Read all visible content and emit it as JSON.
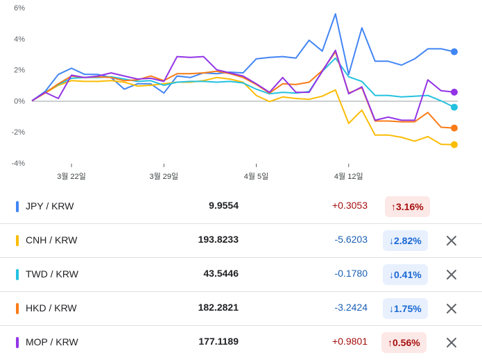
{
  "chart_data": {
    "type": "line",
    "y_ticks": [
      "6%",
      "4%",
      "2%",
      "0%",
      "-2%",
      "-4%"
    ],
    "x_tick_labels": [
      "3월 22일",
      "3월 29일",
      "4월 5일",
      "4월 12일"
    ],
    "ylim": [
      -4,
      6
    ],
    "grid": false,
    "zero_line": true,
    "series": [
      {
        "name": "JPY / KRW",
        "color": "#4285f4",
        "values": [
          0,
          0.6,
          1.7,
          2.1,
          1.7,
          1.7,
          1.5,
          0.75,
          1.1,
          1.1,
          0.5,
          1.6,
          1.5,
          1.8,
          1.75,
          1.85,
          1.8,
          2.7,
          2.8,
          2.85,
          2.75,
          3.9,
          3.2,
          5.6,
          1.7,
          4.7,
          2.55,
          2.55,
          2.3,
          2.7,
          3.35,
          3.35,
          3.16
        ]
      },
      {
        "name": "CNH / KRW",
        "color": "#fbbc04",
        "values": [
          0,
          0.5,
          1.0,
          1.3,
          1.25,
          1.25,
          1.3,
          1.2,
          0.95,
          1.0,
          1.1,
          1.2,
          1.2,
          1.3,
          1.5,
          1.4,
          1.2,
          0.35,
          -0.05,
          0.25,
          0.15,
          0.1,
          0.3,
          0.7,
          -1.45,
          -0.6,
          -2.2,
          -2.2,
          -2.35,
          -2.6,
          -2.3,
          -2.8,
          -2.82
        ]
      },
      {
        "name": "TWD / KRW",
        "color": "#24c1e0",
        "values": [
          0,
          0.55,
          1.05,
          1.45,
          1.5,
          1.5,
          1.55,
          1.4,
          1.25,
          1.3,
          1.0,
          1.2,
          1.25,
          1.25,
          1.2,
          1.25,
          1.15,
          0.75,
          0.45,
          0.55,
          0.5,
          0.6,
          1.9,
          2.75,
          1.55,
          1.25,
          0.35,
          0.35,
          0.25,
          0.3,
          0.35,
          0.0,
          -0.41
        ]
      },
      {
        "name": "HKD / KRW",
        "color": "#fa7b17",
        "values": [
          0,
          0.5,
          1.1,
          1.6,
          1.5,
          1.55,
          1.5,
          1.3,
          1.35,
          1.6,
          1.3,
          1.75,
          1.75,
          1.8,
          1.9,
          1.75,
          1.5,
          1.05,
          0.5,
          1.1,
          1.05,
          1.2,
          1.95,
          3.15,
          0.5,
          0.85,
          -1.3,
          -1.3,
          -1.35,
          -1.35,
          -0.75,
          -1.7,
          -1.75
        ]
      },
      {
        "name": "MOP / KRW",
        "color": "#9334e6",
        "values": [
          0,
          0.55,
          0.15,
          1.65,
          1.5,
          1.6,
          1.8,
          1.6,
          1.4,
          1.45,
          1.25,
          2.85,
          2.8,
          2.85,
          2.0,
          1.8,
          1.6,
          1.1,
          0.55,
          1.5,
          0.55,
          0.55,
          1.9,
          3.25,
          0.45,
          0.9,
          -1.25,
          -1.05,
          -1.25,
          -1.25,
          1.35,
          0.65,
          0.56
        ]
      }
    ]
  },
  "rows": [
    {
      "pair": "JPY / KRW",
      "price": "9.9554",
      "change": "+0.3053",
      "pct": "3.16%",
      "dir": "up",
      "arrow": "↑",
      "color": "#4285f4",
      "closable": false
    },
    {
      "pair": "CNH / KRW",
      "price": "193.8233",
      "change": "-5.6203",
      "pct": "2.82%",
      "dir": "down",
      "arrow": "↓",
      "color": "#fbbc04",
      "closable": true
    },
    {
      "pair": "TWD / KRW",
      "price": "43.5446",
      "change": "-0.1780",
      "pct": "0.41%",
      "dir": "down",
      "arrow": "↓",
      "color": "#24c1e0",
      "closable": true
    },
    {
      "pair": "HKD / KRW",
      "price": "182.2821",
      "change": "-3.2424",
      "pct": "1.75%",
      "dir": "down",
      "arrow": "↓",
      "color": "#fa7b17",
      "closable": true
    },
    {
      "pair": "MOP / KRW",
      "price": "177.1189",
      "change": "+0.9801",
      "pct": "0.56%",
      "dir": "up",
      "arrow": "↑",
      "color": "#9334e6",
      "closable": true
    }
  ],
  "icons": {
    "close": "close-icon"
  }
}
